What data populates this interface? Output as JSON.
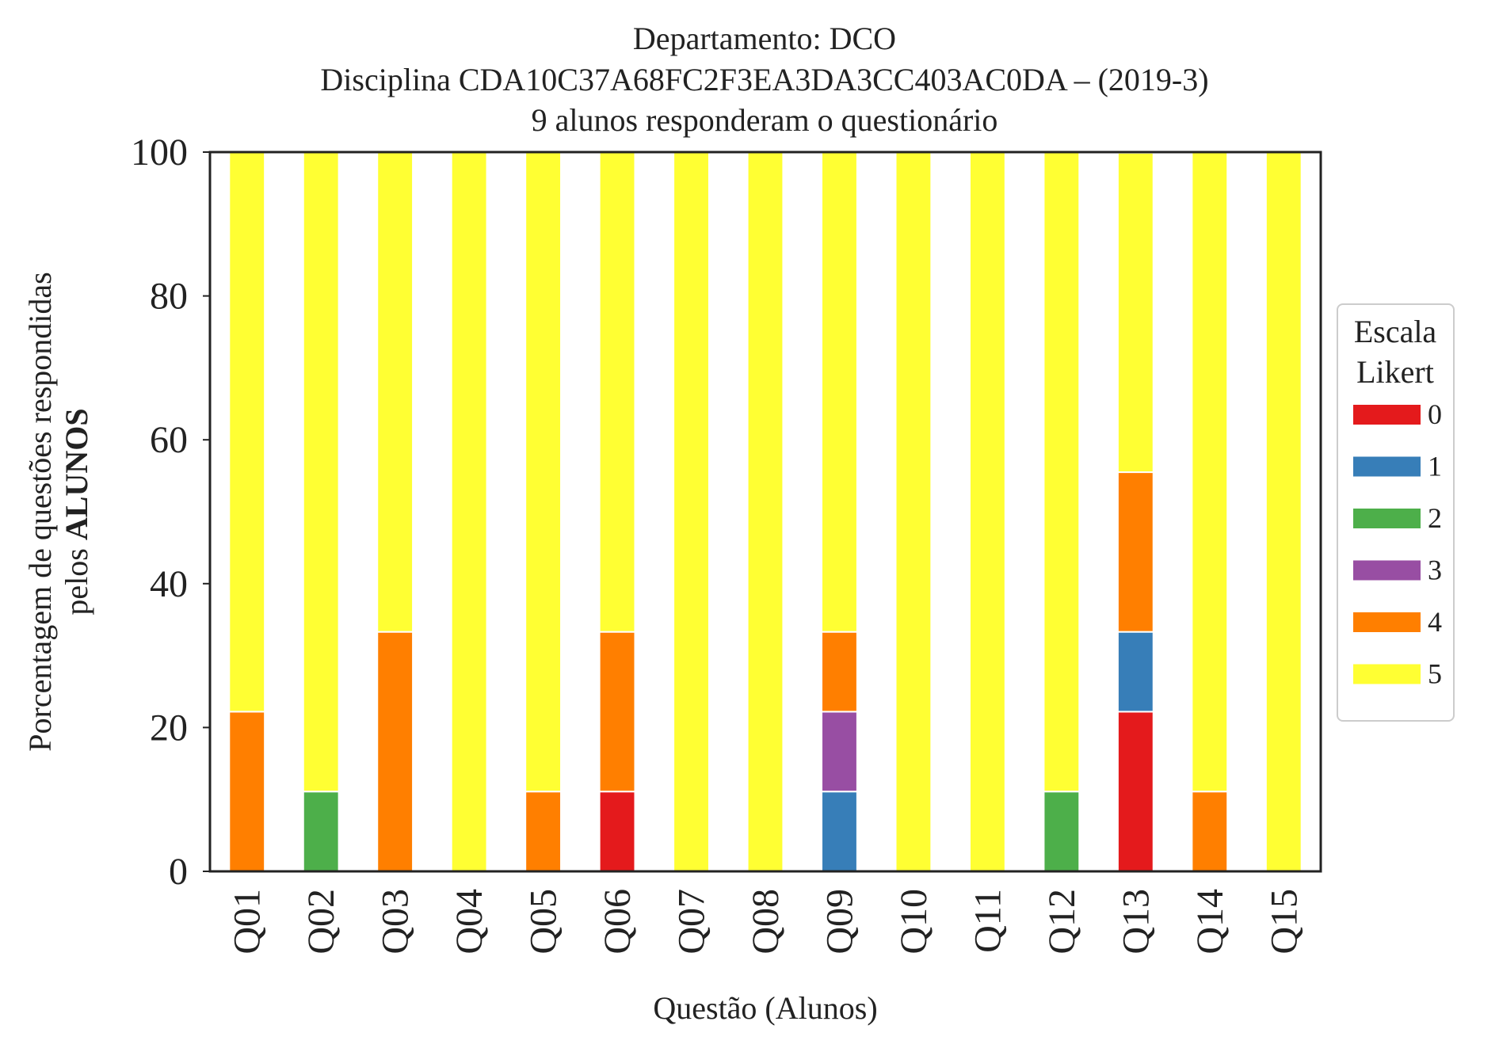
{
  "chart_data": {
    "type": "bar",
    "stacked": true,
    "title_lines": [
      "Departamento: DCO",
      "Disciplina CDA10C37A68FC2F3EA3DA3CC403AC0DA – (2019-3)",
      "9 alunos responderam o questionário"
    ],
    "xlabel": "Questão (Alunos)",
    "ylabel_line1": "Porcentagem de questões respondidas",
    "ylabel_line2_prefix": "pelos ",
    "ylabel_line2_bold": "ALUNOS",
    "ylim": [
      0,
      100
    ],
    "yticks": [
      "0",
      "20",
      "40",
      "60",
      "80",
      "100"
    ],
    "categories": [
      "Q01",
      "Q02",
      "Q03",
      "Q04",
      "Q05",
      "Q06",
      "Q07",
      "Q08",
      "Q09",
      "Q10",
      "Q11",
      "Q12",
      "Q13",
      "Q14",
      "Q15"
    ],
    "legend": {
      "title_lines": [
        "Escala",
        "Likert"
      ],
      "placement": "right-center"
    },
    "series": [
      {
        "name": "0",
        "color": "#e41a1c",
        "values": [
          0,
          0,
          0,
          0,
          0,
          11.1,
          0,
          0,
          0,
          0,
          0,
          0,
          22.2,
          0,
          0
        ]
      },
      {
        "name": "1",
        "color": "#377eb8",
        "values": [
          0,
          0,
          0,
          0,
          0,
          0,
          0,
          0,
          11.1,
          0,
          0,
          0,
          11.1,
          0,
          0
        ]
      },
      {
        "name": "2",
        "color": "#4daf4a",
        "values": [
          0,
          11.1,
          0,
          0,
          0,
          0,
          0,
          0,
          0,
          0,
          0,
          11.1,
          0,
          0,
          0
        ]
      },
      {
        "name": "3",
        "color": "#984ea3",
        "values": [
          0,
          0,
          0,
          0,
          0,
          0,
          0,
          0,
          11.1,
          0,
          0,
          0,
          0,
          0,
          0
        ]
      },
      {
        "name": "4",
        "color": "#ff7f00",
        "values": [
          22.2,
          0,
          33.3,
          0,
          11.1,
          22.2,
          0,
          0,
          11.1,
          0,
          0,
          0,
          22.2,
          11.1,
          0
        ]
      },
      {
        "name": "5",
        "color": "#ffff33",
        "values": [
          77.8,
          88.9,
          66.7,
          100,
          88.9,
          66.7,
          100,
          100,
          66.7,
          100,
          100,
          88.9,
          44.4,
          88.9,
          100
        ]
      }
    ]
  }
}
